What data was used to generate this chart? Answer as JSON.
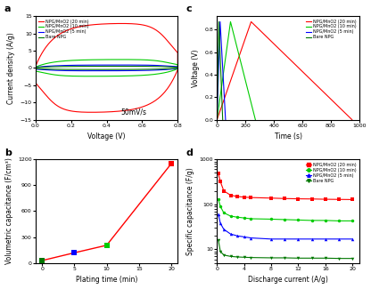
{
  "panel_a": {
    "title": "a",
    "xlabel": "Voltage (V)",
    "ylabel": "Current density (A/g)",
    "annotation": "50mV/s",
    "xlim": [
      0.0,
      0.8
    ],
    "ylim": [
      -15,
      15
    ],
    "yticks": [
      -15,
      -10,
      -5,
      0,
      5,
      10,
      15
    ],
    "xticks": [
      0.0,
      0.2,
      0.4,
      0.6,
      0.8
    ],
    "curves": {
      "red": {
        "label": "NPG/MnO2 (20 min)",
        "color": "#ff0000",
        "imax": 12.5,
        "iflat": 0.5
      },
      "green": {
        "label": "NPG/MnO2 (10 min)",
        "color": "#00cc00",
        "imax": 2.2,
        "iflat": 0.25
      },
      "blue": {
        "label": "NPG/MnO2 (5 min)",
        "color": "#0000ff",
        "imax": 0.7,
        "iflat": 0.15
      },
      "dark_green": {
        "label": "Bare NPG",
        "color": "#007700",
        "imax": 0.4,
        "iflat": 0.08
      }
    }
  },
  "panel_b": {
    "title": "b",
    "xlabel": "Plating time (min)",
    "ylabel": "Volumetric capacitance (F/cm³)",
    "xlim": [
      -1,
      21
    ],
    "ylim": [
      0,
      1200
    ],
    "yticks": [
      0,
      300,
      600,
      900,
      1200
    ],
    "xticks": [
      0,
      5,
      10,
      15,
      20
    ],
    "x": [
      0,
      5,
      10,
      20
    ],
    "y": [
      28,
      118,
      205,
      1150
    ],
    "colors": [
      "#007700",
      "#0000ff",
      "#00cc00",
      "#ff0000"
    ],
    "line_color": "#ff0000"
  },
  "panel_c": {
    "title": "c",
    "xlabel": "Time (s)",
    "ylabel": "Voltage (V)",
    "xlim": [
      0,
      1000
    ],
    "ylim": [
      0.0,
      0.92
    ],
    "yticks": [
      0.0,
      0.2,
      0.4,
      0.6,
      0.8
    ],
    "xticks": [
      0,
      200,
      400,
      600,
      800,
      1000
    ],
    "vmax": 0.87,
    "curves": {
      "red": {
        "label": "NPG/MnO2 (20 min)",
        "color": "#ff0000",
        "t_charge": 240,
        "t_discharge": 950
      },
      "green": {
        "label": "NPG/MnO2 (10 min)",
        "color": "#00cc00",
        "t_charge": 95,
        "t_discharge": 270
      },
      "blue": {
        "label": "NPG/MnO2 (5 min)",
        "color": "#0000ff",
        "t_charge": 22,
        "t_discharge": 60
      },
      "dark_green": {
        "label": "Bare NPG",
        "color": "#007700",
        "t_charge": 13,
        "t_discharge": 40
      }
    }
  },
  "panel_d": {
    "title": "d",
    "xlabel": "Discharge current (A/g)",
    "ylabel": "Specific capacitance (F/g)",
    "xlim": [
      0,
      21
    ],
    "ylim_log": [
      5,
      1000
    ],
    "xticks": [
      0,
      4,
      8,
      12,
      16,
      20
    ],
    "curves": {
      "red": {
        "label": "NPG/MnO2 (20 min)",
        "color": "#ff0000",
        "marker": "s",
        "x": [
          0.2,
          0.5,
          1,
          2,
          3,
          4,
          5,
          8,
          10,
          12,
          14,
          16,
          18,
          20
        ],
        "y": [
          480,
          320,
          200,
          160,
          150,
          145,
          142,
          138,
          135,
          133,
          132,
          130,
          129,
          128
        ]
      },
      "green": {
        "label": "NPG/MnO2 (10 min)",
        "color": "#00cc00",
        "marker": "o",
        "x": [
          0.2,
          0.5,
          1,
          2,
          3,
          4,
          5,
          8,
          10,
          12,
          14,
          16,
          18,
          20
        ],
        "y": [
          130,
          90,
          65,
          55,
          52,
          50,
          48,
          47,
          46,
          45,
          44,
          44,
          43,
          43
        ]
      },
      "blue": {
        "label": "NPG/MnO2 (5 min)",
        "color": "#0000ff",
        "marker": "^",
        "x": [
          0.2,
          0.5,
          1,
          2,
          3,
          4,
          5,
          8,
          10,
          12,
          14,
          16,
          18,
          20
        ],
        "y": [
          60,
          38,
          28,
          22,
          20,
          19,
          18,
          17,
          17,
          17,
          17,
          17,
          17,
          17
        ]
      },
      "dark_green": {
        "label": "Bare NPG",
        "color": "#007700",
        "marker": "v",
        "x": [
          0.2,
          0.5,
          1,
          2,
          3,
          4,
          5,
          8,
          10,
          12,
          14,
          16,
          18,
          20
        ],
        "y": [
          16,
          9,
          7.5,
          7,
          6.8,
          6.7,
          6.6,
          6.5,
          6.5,
          6.4,
          6.4,
          6.4,
          6.3,
          6.3
        ]
      }
    }
  },
  "background_color": "#ffffff"
}
